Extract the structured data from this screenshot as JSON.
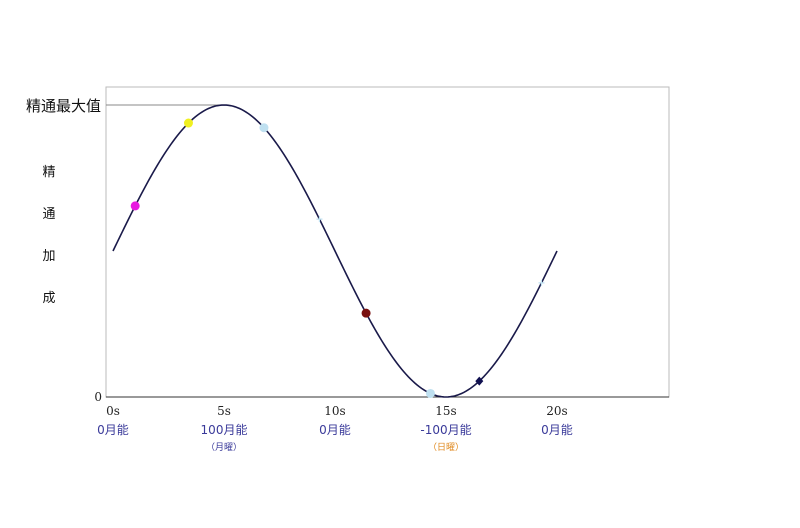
{
  "chart_data": {
    "type": "line",
    "title": "",
    "xlabel": "",
    "ylabel": "精通加成",
    "xlim": [
      0,
      25
    ],
    "ylim": [
      0,
      1
    ],
    "grid": false,
    "legend": "none",
    "max_label": "精通最大值",
    "y_zero_label": "0",
    "series": [
      {
        "function": "sine",
        "period_s": 20,
        "phase": "starts at 0.5, peak at 5s, trough at 15s",
        "x_range": [
          0,
          20
        ],
        "x": [
          0,
          1,
          2,
          3,
          4,
          5,
          6,
          7,
          8,
          9,
          10,
          11,
          12,
          13,
          14,
          15,
          16,
          17,
          18,
          19,
          20
        ],
        "values": [
          0.5,
          0.655,
          0.794,
          0.905,
          0.976,
          1.0,
          0.976,
          0.905,
          0.794,
          0.655,
          0.5,
          0.345,
          0.206,
          0.095,
          0.024,
          0.0,
          0.024,
          0.095,
          0.206,
          0.345,
          0.5
        ],
        "color": "#1a1a4a"
      }
    ],
    "markers": [
      {
        "x": 1.0,
        "color": "#e81ae0",
        "shape": "circle"
      },
      {
        "x": 3.4,
        "color": "#f0f020",
        "shape": "circle"
      },
      {
        "x": 11.4,
        "color": "#7a1010",
        "shape": "circle"
      },
      {
        "x": 16.5,
        "color": "#101050",
        "shape": "diamond"
      },
      {
        "x": 6.8,
        "color": "#bfe0f0",
        "shape": "circle"
      },
      {
        "x": 14.3,
        "color": "#bfe0f0",
        "shape": "circle"
      },
      {
        "x": 9.3,
        "color": "#bfe0f0",
        "shape": "cross"
      },
      {
        "x": 19.3,
        "color": "#bfe0f0",
        "shape": "cross"
      }
    ],
    "x_ticks": [
      {
        "x": 0,
        "label": "0s",
        "sub": "0月能",
        "note": "",
        "note_color": ""
      },
      {
        "x": 5,
        "label": "5s",
        "sub": "100月能",
        "note": "（月曜）",
        "note_color": "#3a3a9a"
      },
      {
        "x": 10,
        "label": "10s",
        "sub": "0月能",
        "note": "",
        "note_color": ""
      },
      {
        "x": 15,
        "label": "15s",
        "sub": "-100月能",
        "note": "（日曜）",
        "note_color": "#e08a20"
      },
      {
        "x": 20,
        "label": "20s",
        "sub": "0月能",
        "note": "",
        "note_color": ""
      }
    ],
    "colors": {
      "curve": "#1a1a4a",
      "frame": "#bbbbbb",
      "axis": "#333333",
      "tick_label": "#222222",
      "sub_label": "#3a3a9a"
    }
  }
}
